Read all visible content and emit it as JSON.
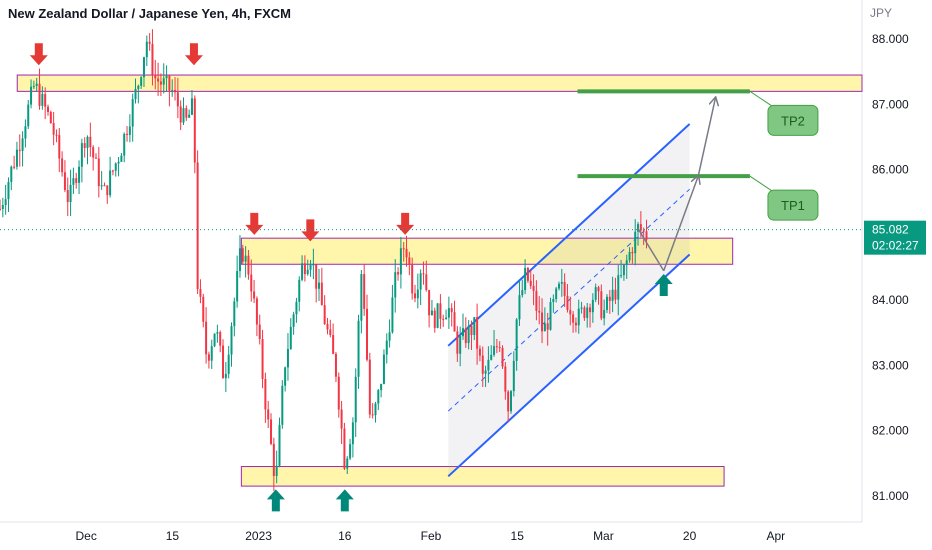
{
  "header": {
    "title": "New Zealand Dollar / Japanese Yen, 4h, FXCM"
  },
  "chart_data": {
    "type": "candlestick",
    "currency": "JPY",
    "ylim": [
      80.6,
      88.6
    ],
    "y_ticks": [
      "88.000",
      "87.000",
      "86.000",
      "85.000",
      "84.000",
      "83.000",
      "82.000",
      "81.000"
    ],
    "y_tick_values": [
      88,
      87,
      86,
      85,
      84,
      83,
      82,
      81
    ],
    "x_ticks": [
      {
        "label": "Dec",
        "x": 0.1
      },
      {
        "label": "15",
        "x": 0.2
      },
      {
        "label": "2023",
        "x": 0.3
      },
      {
        "label": "16",
        "x": 0.4
      },
      {
        "label": "Feb",
        "x": 0.5
      },
      {
        "label": "15",
        "x": 0.6
      },
      {
        "label": "Mar",
        "x": 0.7
      },
      {
        "label": "20",
        "x": 0.8
      },
      {
        "label": "Apr",
        "x": 0.9
      }
    ],
    "last_price": "85.082",
    "countdown": "02:02:27",
    "last_price_value": 85.08,
    "price_path": [
      [
        0.0,
        85.4
      ],
      [
        0.02,
        86.3
      ],
      [
        0.04,
        87.3
      ],
      [
        0.06,
        86.7
      ],
      [
        0.08,
        85.5
      ],
      [
        0.1,
        86.6
      ],
      [
        0.12,
        85.6
      ],
      [
        0.14,
        86.3
      ],
      [
        0.16,
        87.3
      ],
      [
        0.17,
        88.0
      ],
      [
        0.18,
        87.4
      ],
      [
        0.2,
        87.2
      ],
      [
        0.215,
        86.7
      ],
      [
        0.225,
        87.0
      ],
      [
        0.228,
        84.4
      ],
      [
        0.24,
        83.1
      ],
      [
        0.25,
        83.6
      ],
      [
        0.26,
        82.8
      ],
      [
        0.28,
        84.8
      ],
      [
        0.29,
        84.4
      ],
      [
        0.3,
        83.4
      ],
      [
        0.31,
        82.2
      ],
      [
        0.32,
        81.2
      ],
      [
        0.33,
        83.0
      ],
      [
        0.35,
        84.5
      ],
      [
        0.36,
        84.7
      ],
      [
        0.37,
        84.1
      ],
      [
        0.39,
        82.9
      ],
      [
        0.4,
        81.5
      ],
      [
        0.41,
        82.2
      ],
      [
        0.42,
        84.6
      ],
      [
        0.43,
        82.0
      ],
      [
        0.44,
        82.6
      ],
      [
        0.46,
        84.4
      ],
      [
        0.47,
        84.9
      ],
      [
        0.48,
        84.1
      ],
      [
        0.49,
        84.6
      ],
      [
        0.5,
        83.7
      ],
      [
        0.52,
        83.9
      ],
      [
        0.53,
        83.3
      ],
      [
        0.55,
        83.6
      ],
      [
        0.56,
        82.8
      ],
      [
        0.58,
        83.4
      ],
      [
        0.59,
        82.3
      ],
      [
        0.6,
        83.8
      ],
      [
        0.61,
        84.4
      ],
      [
        0.62,
        84.0
      ],
      [
        0.63,
        83.5
      ],
      [
        0.65,
        84.2
      ],
      [
        0.67,
        83.7
      ],
      [
        0.69,
        84.1
      ],
      [
        0.7,
        83.8
      ],
      [
        0.72,
        84.3
      ],
      [
        0.74,
        85.1
      ],
      [
        0.75,
        85.0
      ]
    ],
    "zones": [
      {
        "name": "resistance-top",
        "x1": 0.02,
        "x2": 1.0,
        "y_low": 87.2,
        "y_high": 87.45,
        "color": "#fff59d",
        "border": "#9c27b0"
      },
      {
        "name": "resistance-mid",
        "x1": 0.28,
        "x2": 0.85,
        "y_low": 84.55,
        "y_high": 84.95,
        "color": "#fff59d",
        "border": "#9c27b0"
      },
      {
        "name": "support-bottom",
        "x1": 0.28,
        "x2": 0.84,
        "y_low": 81.15,
        "y_high": 81.45,
        "color": "#fff59d",
        "border": "#9c27b0"
      }
    ],
    "targets": [
      {
        "label": "TP1",
        "price": 85.9,
        "x1": 0.67,
        "x2": 0.87
      },
      {
        "label": "TP2",
        "price": 87.2,
        "x1": 0.67,
        "x2": 0.87
      }
    ],
    "channel": {
      "upper": [
        [
          0.52,
          83.3
        ],
        [
          0.8,
          86.7
        ]
      ],
      "lower": [
        [
          0.52,
          81.3
        ],
        [
          0.8,
          84.7
        ]
      ],
      "mid": [
        [
          0.52,
          82.3
        ],
        [
          0.8,
          85.7
        ]
      ],
      "color": "#2962ff"
    },
    "projection": [
      [
        0.74,
        85.1
      ],
      [
        0.77,
        84.45
      ],
      [
        0.81,
        85.9
      ],
      [
        0.83,
        87.1
      ]
    ],
    "down_arrows": [
      {
        "x": 0.045,
        "price": 87.6
      },
      {
        "x": 0.225,
        "price": 87.6
      },
      {
        "x": 0.295,
        "price": 85.0
      },
      {
        "x": 0.36,
        "price": 84.9
      },
      {
        "x": 0.47,
        "price": 85.0
      }
    ],
    "up_arrows": [
      {
        "x": 0.32,
        "price": 81.1
      },
      {
        "x": 0.4,
        "price": 81.1
      },
      {
        "x": 0.77,
        "price": 84.4
      }
    ],
    "colors": {
      "up": "#089981",
      "down": "#f23645",
      "arrow_down": "#e53935",
      "arrow_up": "#00897b",
      "target": "#43a047",
      "tp_box": "#81c784",
      "price_tag": "#089981"
    }
  }
}
